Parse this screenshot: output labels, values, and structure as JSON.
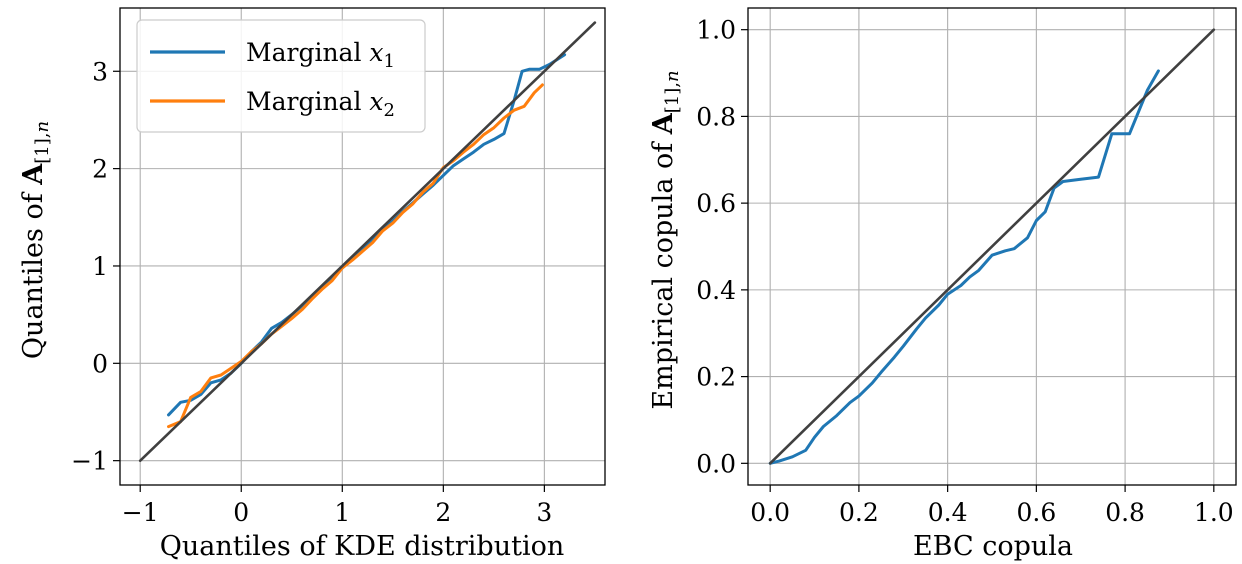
{
  "chart_data": [
    {
      "type": "line",
      "title": "",
      "xlabel": "Quantiles of KDE distribution",
      "ylabel": "Quantiles of A[1],n",
      "xlim": [
        -1.2,
        3.6
      ],
      "ylim": [
        -1.25,
        3.65
      ],
      "xticks": [
        -1,
        0,
        1,
        2,
        3
      ],
      "yticks": [
        -1,
        0,
        1,
        2,
        3
      ],
      "xtick_labels": [
        "−1",
        "0",
        "1",
        "2",
        "3"
      ],
      "ytick_labels": [
        "−1",
        "0",
        "1",
        "2",
        "3"
      ],
      "grid": true,
      "legend_position": "top-left",
      "series": [
        {
          "name": "Marginal x1",
          "color": "#1f77b4",
          "points": [
            [
              -0.72,
              -0.53
            ],
            [
              -0.6,
              -0.4
            ],
            [
              -0.5,
              -0.38
            ],
            [
              -0.4,
              -0.32
            ],
            [
              -0.3,
              -0.2
            ],
            [
              -0.2,
              -0.17
            ],
            [
              -0.1,
              -0.1
            ],
            [
              0.0,
              0.0
            ],
            [
              0.1,
              0.12
            ],
            [
              0.2,
              0.22
            ],
            [
              0.3,
              0.36
            ],
            [
              0.4,
              0.42
            ],
            [
              0.5,
              0.5
            ],
            [
              0.6,
              0.59
            ],
            [
              0.7,
              0.67
            ],
            [
              0.8,
              0.78
            ],
            [
              0.9,
              0.88
            ],
            [
              1.0,
              0.98
            ],
            [
              1.1,
              1.08
            ],
            [
              1.2,
              1.17
            ],
            [
              1.3,
              1.28
            ],
            [
              1.4,
              1.37
            ],
            [
              1.5,
              1.46
            ],
            [
              1.6,
              1.56
            ],
            [
              1.7,
              1.65
            ],
            [
              1.8,
              1.74
            ],
            [
              1.9,
              1.83
            ],
            [
              2.0,
              1.93
            ],
            [
              2.1,
              2.03
            ],
            [
              2.2,
              2.1
            ],
            [
              2.3,
              2.17
            ],
            [
              2.4,
              2.25
            ],
            [
              2.5,
              2.3
            ],
            [
              2.6,
              2.36
            ],
            [
              2.7,
              2.7
            ],
            [
              2.78,
              3.0
            ],
            [
              2.85,
              3.02
            ],
            [
              2.95,
              3.02
            ],
            [
              3.05,
              3.07
            ],
            [
              3.2,
              3.17
            ]
          ]
        },
        {
          "name": "Marginal x2",
          "color": "#ff7f0e",
          "points": [
            [
              -0.72,
              -0.65
            ],
            [
              -0.6,
              -0.6
            ],
            [
              -0.5,
              -0.35
            ],
            [
              -0.4,
              -0.29
            ],
            [
              -0.3,
              -0.15
            ],
            [
              -0.2,
              -0.12
            ],
            [
              -0.1,
              -0.05
            ],
            [
              0.0,
              0.02
            ],
            [
              0.1,
              0.12
            ],
            [
              0.2,
              0.2
            ],
            [
              0.3,
              0.3
            ],
            [
              0.4,
              0.38
            ],
            [
              0.5,
              0.46
            ],
            [
              0.6,
              0.55
            ],
            [
              0.7,
              0.66
            ],
            [
              0.8,
              0.76
            ],
            [
              0.9,
              0.85
            ],
            [
              1.0,
              0.98
            ],
            [
              1.1,
              1.06
            ],
            [
              1.2,
              1.15
            ],
            [
              1.3,
              1.24
            ],
            [
              1.4,
              1.36
            ],
            [
              1.5,
              1.44
            ],
            [
              1.6,
              1.55
            ],
            [
              1.7,
              1.64
            ],
            [
              1.8,
              1.76
            ],
            [
              1.9,
              1.85
            ],
            [
              2.0,
              2.01
            ],
            [
              2.1,
              2.08
            ],
            [
              2.2,
              2.17
            ],
            [
              2.3,
              2.25
            ],
            [
              2.4,
              2.35
            ],
            [
              2.5,
              2.42
            ],
            [
              2.6,
              2.52
            ],
            [
              2.7,
              2.6
            ],
            [
              2.8,
              2.64
            ],
            [
              2.9,
              2.78
            ],
            [
              2.98,
              2.86
            ]
          ]
        },
        {
          "name": "",
          "color": "#404040",
          "points": [
            [
              -1.0,
              -1.0
            ],
            [
              3.5,
              3.5
            ]
          ]
        }
      ]
    },
    {
      "type": "line",
      "title": "",
      "xlabel": "EBC copula",
      "ylabel": "Empirical copula of A[1],n",
      "xlim": [
        -0.05,
        1.05
      ],
      "ylim": [
        -0.05,
        1.05
      ],
      "xticks": [
        0.0,
        0.2,
        0.4,
        0.6,
        0.8,
        1.0
      ],
      "yticks": [
        0.0,
        0.2,
        0.4,
        0.6,
        0.8,
        1.0
      ],
      "xtick_labels": [
        "0.0",
        "0.2",
        "0.4",
        "0.6",
        "0.8",
        "1.0"
      ],
      "ytick_labels": [
        "0.0",
        "0.2",
        "0.4",
        "0.6",
        "0.8",
        "1.0"
      ],
      "grid": true,
      "series": [
        {
          "name": "",
          "color": "#1f77b4",
          "points": [
            [
              0.0,
              0.0
            ],
            [
              0.02,
              0.005
            ],
            [
              0.05,
              0.015
            ],
            [
              0.08,
              0.03
            ],
            [
              0.1,
              0.06
            ],
            [
              0.12,
              0.085
            ],
            [
              0.15,
              0.11
            ],
            [
              0.18,
              0.14
            ],
            [
              0.2,
              0.155
            ],
            [
              0.23,
              0.185
            ],
            [
              0.25,
              0.21
            ],
            [
              0.28,
              0.245
            ],
            [
              0.3,
              0.27
            ],
            [
              0.33,
              0.31
            ],
            [
              0.35,
              0.335
            ],
            [
              0.38,
              0.365
            ],
            [
              0.4,
              0.39
            ],
            [
              0.43,
              0.41
            ],
            [
              0.45,
              0.43
            ],
            [
              0.47,
              0.445
            ],
            [
              0.5,
              0.48
            ],
            [
              0.53,
              0.49
            ],
            [
              0.55,
              0.495
            ],
            [
              0.58,
              0.52
            ],
            [
              0.6,
              0.56
            ],
            [
              0.62,
              0.58
            ],
            [
              0.64,
              0.635
            ],
            [
              0.66,
              0.65
            ],
            [
              0.7,
              0.655
            ],
            [
              0.74,
              0.66
            ],
            [
              0.77,
              0.76
            ],
            [
              0.81,
              0.76
            ],
            [
              0.85,
              0.86
            ],
            [
              0.875,
              0.905
            ]
          ]
        },
        {
          "name": "",
          "color": "#404040",
          "points": [
            [
              0.0,
              0.0
            ],
            [
              1.0,
              1.0
            ]
          ]
        }
      ]
    }
  ]
}
